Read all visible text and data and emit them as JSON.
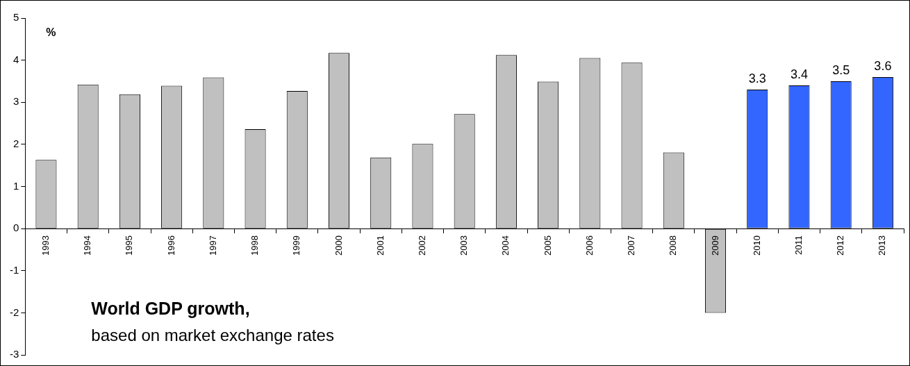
{
  "chart_data": {
    "type": "bar",
    "title": "World GDP growth,",
    "subtitle": "based on market exchange rates",
    "ylabel": "%",
    "categories": [
      "1993",
      "1994",
      "1995",
      "1996",
      "1997",
      "1998",
      "1999",
      "2000",
      "2001",
      "2002",
      "2003",
      "2004",
      "2005",
      "2006",
      "2007",
      "2008",
      "2009",
      "2010",
      "2011",
      "2012",
      "2013"
    ],
    "values": [
      1.63,
      3.42,
      3.19,
      3.39,
      3.59,
      2.36,
      3.27,
      4.17,
      1.69,
      2.01,
      2.72,
      4.12,
      3.49,
      4.05,
      3.94,
      1.81,
      -2.0,
      3.3,
      3.4,
      3.5,
      3.6
    ],
    "colors": [
      "#c0c0c0",
      "#c0c0c0",
      "#c0c0c0",
      "#c0c0c0",
      "#c0c0c0",
      "#c0c0c0",
      "#c0c0c0",
      "#c0c0c0",
      "#c0c0c0",
      "#c0c0c0",
      "#c0c0c0",
      "#c0c0c0",
      "#c0c0c0",
      "#c0c0c0",
      "#c0c0c0",
      "#c0c0c0",
      "#c0c0c0",
      "#3366ff",
      "#3366ff",
      "#3366ff",
      "#3366ff"
    ],
    "value_labels": [
      null,
      null,
      null,
      null,
      null,
      null,
      null,
      null,
      null,
      null,
      null,
      null,
      null,
      null,
      null,
      null,
      null,
      "3.3",
      "3.4",
      "3.5",
      "3.6"
    ],
    "ylim": [
      -3,
      5
    ],
    "yticks": [
      -3,
      -2,
      -1,
      0,
      1,
      2,
      3,
      4,
      5
    ],
    "grid": false,
    "legend": false
  }
}
